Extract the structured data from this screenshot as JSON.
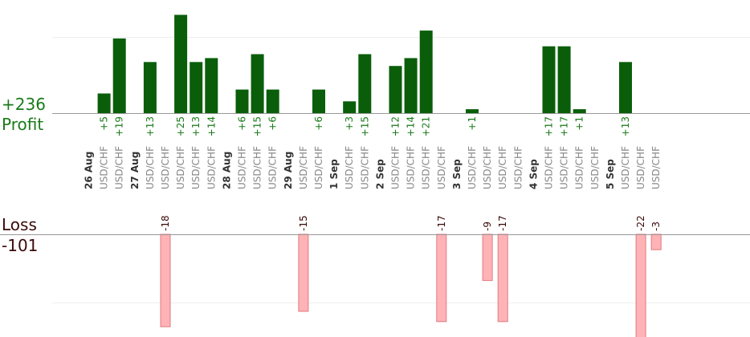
{
  "summary": {
    "profit_total": "+236",
    "profit_label": "Profit",
    "loss_label": "Loss",
    "loss_total": "-101"
  },
  "colors": {
    "profit_bar": "#0a5e0a",
    "profit_text": "#1a7a1a",
    "loss_fill": "#ffb3b6",
    "loss_stroke": "#e07a80",
    "loss_text": "#3a0a0a",
    "axis": "#999999",
    "grid": "#eeeeee"
  },
  "chart_data": {
    "type": "bar",
    "categories": [
      "26 Aug",
      "USD/CHF",
      "USD/CHF",
      "27 Aug",
      "USD/CHF",
      "USD/CHF",
      "USD/CHF",
      "USD/CHF",
      "USD/CHF",
      "28 Aug",
      "USD/CHF",
      "USD/CHF",
      "USD/CHF",
      "29 Aug",
      "USD/CHF",
      "USD/CHF",
      "1 Sep",
      "USD/CHF",
      "USD/CHF",
      "2 Sep",
      "USD/CHF",
      "USD/CHF",
      "USD/CHF",
      "USD/CHF",
      "3 Sep",
      "USD/CHF",
      "USD/CHF",
      "USD/CHF",
      "USD/CHF",
      "4 Sep",
      "USD/CHF",
      "USD/CHF",
      "USD/CHF",
      "USD/CHF",
      "5 Sep",
      "USD/CHF",
      "USD/CHF",
      "USD/CHF"
    ],
    "series": [
      {
        "name": "Profit",
        "values": [
          null,
          5,
          19,
          null,
          13,
          null,
          25,
          13,
          14,
          null,
          6,
          15,
          6,
          null,
          null,
          6,
          null,
          3,
          15,
          null,
          12,
          14,
          21,
          null,
          null,
          1,
          null,
          null,
          null,
          null,
          17,
          17,
          1,
          null,
          null,
          13,
          null,
          null
        ],
        "labels": [
          null,
          "+5",
          "+19",
          null,
          "+13",
          null,
          "+25",
          "+13",
          "+14",
          null,
          "+6",
          "+15",
          "+6",
          null,
          null,
          "+6",
          null,
          "+3",
          "+15",
          null,
          "+12",
          "+14",
          "+21",
          null,
          null,
          "+1",
          null,
          null,
          null,
          null,
          "+17",
          "+17",
          "+1",
          null,
          null,
          "+13",
          null,
          null
        ]
      },
      {
        "name": "Loss",
        "values": [
          null,
          null,
          null,
          null,
          null,
          -18,
          null,
          null,
          null,
          null,
          null,
          null,
          null,
          null,
          -15,
          null,
          null,
          null,
          null,
          null,
          null,
          null,
          null,
          -17,
          null,
          null,
          -9,
          -17,
          null,
          null,
          null,
          null,
          null,
          null,
          null,
          null,
          -22,
          -3
        ],
        "labels": [
          null,
          null,
          null,
          null,
          null,
          "-18",
          null,
          null,
          null,
          null,
          null,
          null,
          null,
          null,
          "-15",
          null,
          null,
          null,
          null,
          null,
          null,
          null,
          null,
          "-17",
          null,
          null,
          "-9",
          "-17",
          null,
          null,
          null,
          null,
          null,
          null,
          null,
          null,
          "-22",
          "-3"
        ]
      }
    ],
    "grid": true
  }
}
